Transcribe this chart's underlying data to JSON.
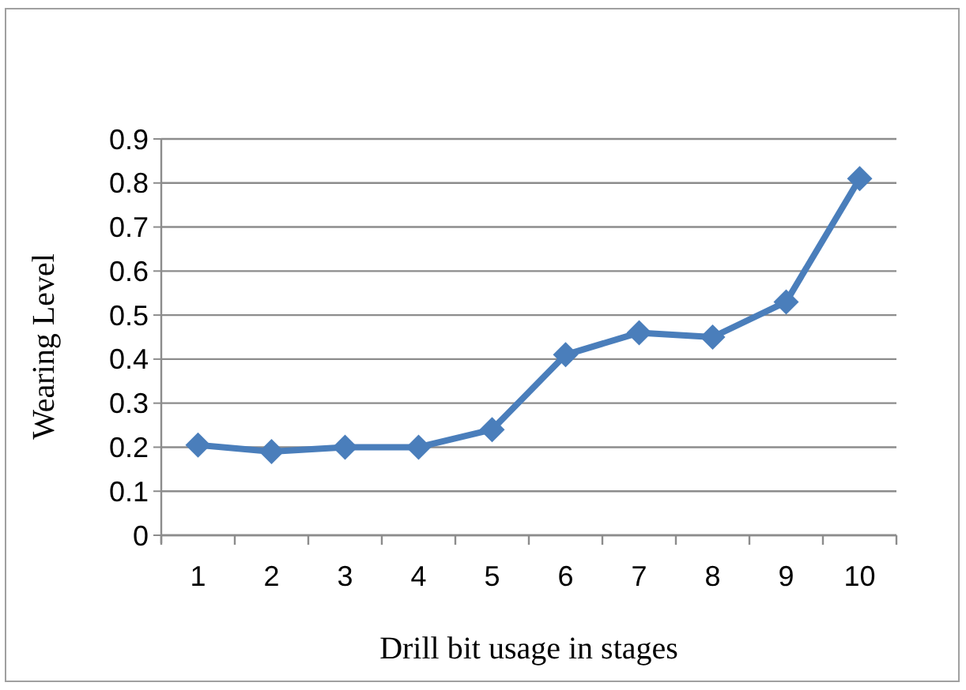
{
  "chart_data": {
    "type": "line",
    "xlabel": "Drill bit usage in stages",
    "ylabel": "Wearing Level",
    "categories": [
      "1",
      "2",
      "3",
      "4",
      "5",
      "6",
      "7",
      "8",
      "9",
      "10"
    ],
    "series": [
      {
        "color": "#4a7ebb",
        "values": [
          0.205,
          0.19,
          0.2,
          0.2,
          0.24,
          0.41,
          0.46,
          0.45,
          0.53,
          0.81
        ]
      }
    ],
    "ylim": [
      0,
      0.9
    ],
    "yticks": [
      0,
      0.1,
      0.2,
      0.3,
      0.4,
      0.5,
      0.6,
      0.7,
      0.8,
      0.9
    ],
    "grid": "y",
    "marker": "diamond",
    "line_style": "solid"
  }
}
